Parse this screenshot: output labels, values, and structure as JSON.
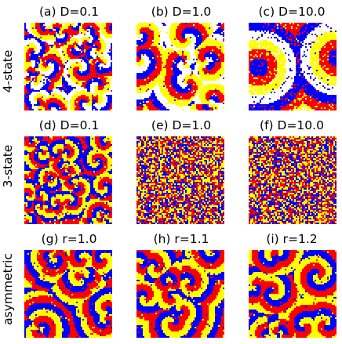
{
  "colors": {
    "state_red": "#ff0000",
    "state_yellow": "#ffff00",
    "state_blue": "#0000ff",
    "state_white": "#ffffff"
  },
  "rows": [
    {
      "label": "4-state",
      "pattern": "large-spiral-domains"
    },
    {
      "label": "3-state",
      "pattern": "fine-mixed-speckle"
    },
    {
      "label": "asymmetric",
      "pattern": "spiral-domains"
    }
  ],
  "panels": [
    {
      "title": "(a) D=0.1",
      "row": 0,
      "pattern": "small-patches",
      "states": 4
    },
    {
      "title": "(b) D=1.0",
      "row": 0,
      "pattern": "spirals",
      "states": 4
    },
    {
      "title": "(c) D=10.0",
      "row": 0,
      "pattern": "large-rings",
      "states": 4
    },
    {
      "title": "(d) D=0.1",
      "row": 1,
      "pattern": "small-patches",
      "states": 3
    },
    {
      "title": "(e) D=1.0",
      "row": 1,
      "pattern": "fine-noise",
      "states": 3
    },
    {
      "title": "(f) D=10.0",
      "row": 1,
      "pattern": "fine-noise",
      "states": 3
    },
    {
      "title": "(g) r=1.0",
      "row": 2,
      "pattern": "spirals",
      "states": 3
    },
    {
      "title": "(h) r=1.1",
      "row": 2,
      "pattern": "spirals",
      "states": 3
    },
    {
      "title": "(i) r=1.2",
      "row": 2,
      "pattern": "spirals",
      "states": 3
    }
  ]
}
